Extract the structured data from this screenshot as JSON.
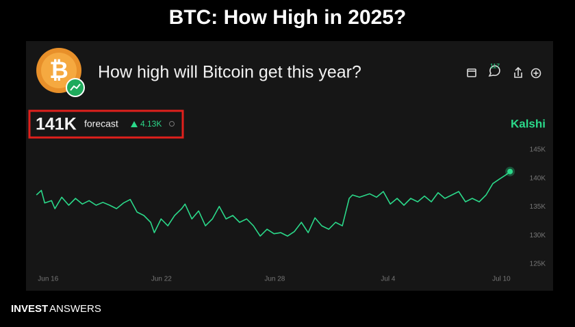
{
  "header": {
    "title": "BTC: How High in 2025?"
  },
  "market": {
    "question": "How high will Bitcoin get this year?",
    "forecast_value": "141K",
    "forecast_label": "forecast",
    "change": "4.13K",
    "comments": "117",
    "source": "Kalshi"
  },
  "footer": {
    "brand_bold": "INVEST",
    "brand_light": "ANSWERS"
  },
  "chart_data": {
    "type": "line",
    "color": "#2bd98a",
    "x": [
      -0.62,
      -0.36,
      -0.18,
      0.18,
      0.36,
      0.72,
      1.09,
      1.45,
      1.81,
      2.17,
      2.54,
      2.9,
      3.26,
      3.62,
      3.99,
      4.35,
      4.71,
      5.07,
      5.43,
      5.62,
      5.98,
      6.34,
      6.7,
      7.07,
      7.25,
      7.61,
      7.97,
      8.33,
      8.7,
      9.06,
      9.42,
      9.78,
      10.14,
      10.51,
      10.87,
      11.23,
      11.59,
      11.96,
      12.32,
      12.68,
      13.04,
      13.41,
      13.77,
      14.13,
      14.49,
      14.86,
      15.22,
      15.58,
      15.94,
      16.12,
      16.49,
      17.03,
      17.39,
      17.75,
      18.12,
      18.48,
      18.84,
      19.2,
      19.57,
      19.93,
      20.29,
      20.65,
      21.01,
      21.38,
      21.74,
      22.1,
      22.46,
      22.83,
      23.19,
      23.55,
      23.91,
      24.28,
      24.46
    ],
    "values": [
      137100,
      137900,
      135700,
      136100,
      134700,
      136700,
      135300,
      136500,
      135500,
      136100,
      135300,
      135800,
      135300,
      134700,
      135700,
      136300,
      134100,
      133500,
      132300,
      130500,
      132900,
      131700,
      133500,
      134700,
      135500,
      132900,
      134300,
      131700,
      132900,
      135100,
      132900,
      133500,
      132300,
      132900,
      131700,
      129900,
      131100,
      130300,
      130500,
      129900,
      130700,
      132300,
      130500,
      133100,
      131700,
      131100,
      132300,
      131700,
      136500,
      137100,
      136700,
      137300,
      136700,
      137700,
      135500,
      136500,
      135300,
      136500,
      135900,
      136900,
      135900,
      137500,
      136500,
      137100,
      137700,
      135900,
      136500,
      135900,
      137100,
      139100,
      139900,
      140700,
      141200
    ],
    "xlim": [
      -0.7,
      25
    ],
    "xticks": [
      {
        "value": 0,
        "label": "Jun 16"
      },
      {
        "value": 6,
        "label": "Jun 22"
      },
      {
        "value": 12,
        "label": "Jun 28"
      },
      {
        "value": 18,
        "label": "Jul 4"
      },
      {
        "value": 24,
        "label": "Jul 10"
      }
    ],
    "ylim": [
      125000,
      145000
    ],
    "yticks": [
      {
        "value": 125000,
        "label": "125K"
      },
      {
        "value": 130000,
        "label": "130K"
      },
      {
        "value": 135000,
        "label": "135K"
      },
      {
        "value": 140000,
        "label": "140K"
      },
      {
        "value": 145000,
        "label": "145K"
      }
    ]
  }
}
